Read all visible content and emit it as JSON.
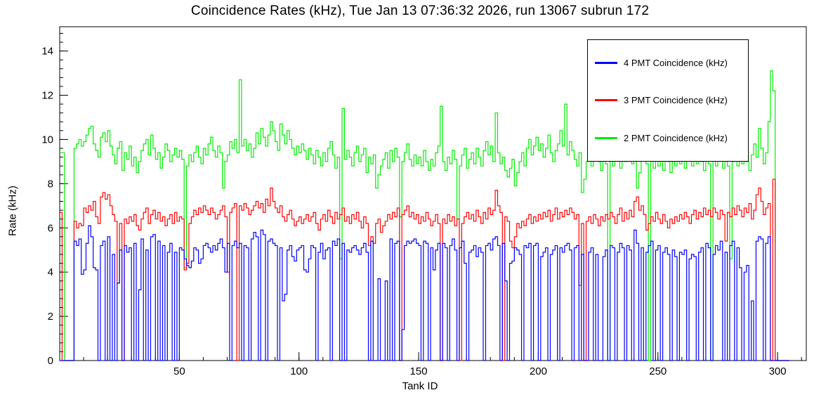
{
  "title": "Coincidence Rates (kHz), Tue Jan 13 07:36:32 2026, run 13067 subrun 172",
  "chart_data": {
    "type": "line",
    "style": "step-histogram",
    "title": "Coincidence Rates (kHz), Tue Jan 13 07:36:32 2026, run 13067 subrun 172",
    "xlabel": "Tank ID",
    "ylabel": "Rate (kHz)",
    "xlim": [
      0,
      312
    ],
    "ylim": [
      0,
      15.1
    ],
    "x_major_ticks": [
      50,
      100,
      150,
      200,
      250,
      300
    ],
    "x_minor_step": 10,
    "y_major_ticks": [
      0,
      2,
      4,
      6,
      8,
      10,
      12,
      14
    ],
    "y_minor_step": 0.4,
    "grid": false,
    "legend_position": "top-right",
    "x_bin_start": 1,
    "legend": [
      {
        "label": "4 PMT Coincidence (kHz)",
        "color": "#0000ff"
      },
      {
        "label": "3 PMT Coincidence (kHz)",
        "color": "#ff0000"
      },
      {
        "label": "2 PMT Coincidence (kHz)",
        "color": "#00ee00"
      }
    ],
    "series": [
      {
        "name": "4 PMT Coincidence (kHz)",
        "slug": "4pmt",
        "color": "#0000ff",
        "values": [
          0,
          0,
          0,
          0,
          0,
          0,
          5.4,
          5.2,
          5.5,
          3.9,
          4.1,
          5.3,
          6.1,
          5.6,
          4.2,
          4.1,
          0,
          5.2,
          5.4,
          0,
          5.6,
          0,
          4.8,
          0,
          3.5,
          5.0,
          0,
          5.2,
          4.9,
          5.1,
          0,
          5.3,
          0,
          3.2,
          5.5,
          0,
          5.0,
          0,
          5.6,
          5.7,
          0,
          5.4,
          0,
          5.2,
          0,
          4.9,
          5.3,
          0,
          4.9,
          0,
          5.1,
          5.0,
          4.6,
          4.3,
          4.2,
          4.5,
          5.1,
          5.0,
          4.4,
          4.6,
          5.2,
          5.3,
          5.1,
          4.9,
          5.2,
          5.0,
          5.3,
          5.5,
          5.1,
          4.0,
          5.3,
          0,
          5.2,
          5.4,
          5.1,
          5.3,
          0,
          5.2,
          5.1,
          0,
          5.5,
          5.8,
          5.6,
          0,
          5.9,
          5.7,
          0,
          5.4,
          5.5,
          5.3,
          5.2,
          0,
          5.1,
          2.7,
          3.0,
          5.0,
          5.2,
          4.7,
          4.5,
          5.0,
          5.1,
          5.2,
          4.1,
          4.0,
          4.6,
          5.2,
          5.1,
          0,
          4.9,
          5.3,
          4.6,
          5.0,
          5.1,
          0,
          5.4,
          5.2,
          5.5,
          0,
          5.3,
          0,
          5.0,
          4.9,
          5.1,
          5.2,
          5.0,
          4.8,
          5.1,
          5.3,
          4.9,
          0,
          5.4,
          0,
          0,
          3.7,
          0,
          0,
          3.6,
          0,
          5.5,
          0,
          5.3,
          5.4,
          0,
          1.4,
          5.2,
          5.4,
          5.3,
          5.4,
          5.5,
          5.3,
          5.2,
          0,
          5.4,
          5.3,
          0,
          5.1,
          4.1,
          5.0,
          5.3,
          0,
          5.3,
          5.1,
          0,
          5.2,
          5.5,
          5.0,
          0,
          5.1,
          5.4,
          4.4,
          0,
          4.9,
          5.0,
          5.2,
          4.7,
          5.1,
          4.9,
          0,
          5.2,
          5.3,
          5.0,
          5.5,
          5.6,
          5.2,
          0,
          5.3,
          3.6,
          0,
          4.4,
          4.5,
          5.1,
          5.0,
          4.8,
          0,
          5.2,
          5.1,
          5.3,
          0,
          5.2,
          5.3,
          0,
          4.7,
          4.9,
          5.1,
          0,
          4.8,
          5.0,
          5.2,
          0,
          5.1,
          4.9,
          5.2,
          5.3,
          5.0,
          0,
          5.1,
          5.2,
          0,
          4.8,
          0,
          0,
          4.9,
          5.1,
          0,
          4.8,
          0,
          0,
          4.7,
          5.0,
          0,
          5.2,
          5.1,
          0,
          4.9,
          5.3,
          5.1,
          0,
          5.2,
          5.0,
          0,
          5.9,
          5.3,
          0,
          5.1,
          0,
          4.9,
          5.2,
          5.4,
          0,
          5.0,
          5.2,
          0,
          4.9,
          5.1,
          4.8,
          0,
          5.0,
          4.7,
          0,
          4.9,
          4.8,
          5.0,
          0,
          4.6,
          4.8,
          4.7,
          0,
          4.9,
          5.1,
          0,
          5.3,
          5.1,
          0,
          4.8,
          5.2,
          5.0,
          5.4,
          0,
          4.9,
          0,
          5.2,
          5.4,
          0,
          5.1,
          4.2,
          0,
          4.0,
          4.3,
          0,
          2.7,
          0,
          5.4,
          5.6,
          5.5,
          0,
          5.3,
          5.6,
          0,
          0,
          0,
          0,
          0,
          0,
          0,
          0
        ]
      },
      {
        "name": "3 PMT Coincidence (kHz)",
        "slug": "3pmt",
        "color": "#ff0000",
        "values": [
          6.7,
          0,
          0,
          0,
          0,
          0,
          6.3,
          6.0,
          6.2,
          6.1,
          6.9,
          6.7,
          7.0,
          6.8,
          7.2,
          6.5,
          6.2,
          7.4,
          7.6,
          7.3,
          7.5,
          7.0,
          6.6,
          6.3,
          3.5,
          6.2,
          0,
          6.4,
          6.2,
          6.5,
          6.3,
          6.6,
          6.1,
          5.9,
          6.4,
          6.7,
          6.9,
          6.2,
          6.6,
          6.8,
          6.4,
          6.7,
          6.3,
          6.5,
          6.1,
          6.4,
          6.6,
          6.2,
          6.7,
          6.3,
          6.5,
          6.4,
          4.1,
          4.4,
          6.2,
          6.5,
          6.8,
          6.6,
          6.9,
          6.7,
          7.0,
          6.8,
          6.6,
          6.9,
          6.7,
          6.4,
          6.6,
          6.8,
          7.0,
          6.5,
          4.0,
          6.7,
          6.9,
          7.1,
          0,
          7.0,
          6.8,
          7.1,
          6.9,
          6.6,
          6.8,
          7.0,
          7.2,
          6.9,
          7.1,
          6.7,
          7.3,
          7.0,
          7.8,
          7.2,
          6.9,
          6.7,
          7.0,
          6.5,
          6.3,
          6.6,
          6.8,
          6.4,
          6.1,
          6.3,
          6.5,
          6.2,
          6.4,
          6.6,
          6.3,
          6.5,
          6.7,
          6.2,
          5.9,
          6.4,
          6.6,
          6.3,
          6.8,
          6.5,
          6.2,
          6.7,
          6.4,
          6.6,
          6.9,
          6.3,
          6.5,
          6.2,
          6.6,
          6.4,
          6.7,
          6.3,
          6.0,
          6.5,
          6.2,
          5.2,
          5.6,
          5.3,
          6.2,
          6.4,
          5.8,
          6.1,
          6.3,
          6.6,
          6.4,
          6.7,
          6.5,
          6.9,
          0,
          6.6,
          6.8,
          7.0,
          6.5,
          6.7,
          6.4,
          6.6,
          6.2,
          6.5,
          6.3,
          6.7,
          6.4,
          6.1,
          6.3,
          6.6,
          6.2,
          0,
          6.4,
          6.2,
          6.6,
          6.3,
          6.5,
          6.1,
          6.4,
          0,
          6.2,
          6.5,
          6.7,
          6.4,
          6.6,
          6.3,
          6.8,
          6.5,
          6.2,
          6.7,
          6.4,
          6.9,
          6.6,
          6.8,
          7.7,
          7.0,
          6.7,
          0,
          6.5,
          6.3,
          5.4,
          5.1,
          5.6,
          6.2,
          6.0,
          6.3,
          6.1,
          6.4,
          6.6,
          6.2,
          6.5,
          6.3,
          6.6,
          6.4,
          6.7,
          6.5,
          6.8,
          6.3,
          6.6,
          6.9,
          6.4,
          6.7,
          6.5,
          6.8,
          6.6,
          6.9,
          6.7,
          6.4,
          6.6,
          3.4,
          6.2,
          0,
          6.3,
          6.5,
          6.2,
          6.6,
          6.4,
          6.1,
          6.5,
          6.3,
          6.6,
          6.4,
          6.7,
          6.5,
          6.2,
          6.6,
          6.9,
          6.3,
          6.7,
          6.4,
          6.8,
          6.5,
          7.2,
          7.4,
          6.8,
          7.0,
          6.6,
          5.9,
          6.2,
          6.5,
          6.3,
          6.7,
          6.4,
          6.2,
          6.6,
          6.3,
          6.0,
          6.4,
          6.2,
          6.5,
          6.3,
          6.6,
          6.4,
          6.7,
          6.5,
          6.2,
          6.6,
          6.8,
          6.4,
          6.7,
          6.5,
          6.9,
          6.6,
          6.8,
          6.5,
          6.9,
          6.7,
          6.4,
          6.8,
          6.6,
          5.4,
          6.7,
          6.5,
          6.9,
          6.6,
          7.0,
          6.8,
          6.5,
          6.9,
          6.7,
          7.1,
          6.4,
          6.8,
          7.5,
          7.8,
          7.2,
          6.6,
          6.9,
          7.1,
          0,
          8.2,
          0,
          0,
          0,
          0,
          0,
          0
        ]
      },
      {
        "name": "2 PMT Coincidence (kHz)",
        "slug": "2pmt",
        "color": "#00ee00",
        "values": [
          9.4,
          9.4,
          0,
          0,
          0,
          0,
          9.6,
          9.8,
          10.0,
          9.7,
          9.9,
          10.2,
          10.5,
          10.6,
          9.8,
          9.5,
          9.2,
          10.1,
          10.3,
          9.9,
          10.4,
          9.7,
          9.3,
          8.9,
          9.6,
          9.9,
          8.6,
          9.4,
          9.1,
          9.7,
          8.8,
          9.2,
          8.5,
          9.0,
          9.5,
          9.8,
          10.0,
          9.3,
          10.2,
          9.6,
          9.1,
          9.4,
          8.7,
          9.2,
          9.8,
          9.5,
          9.0,
          9.3,
          9.6,
          9.2,
          9.5,
          9.1,
          4.2,
          8.8,
          9.3,
          9.0,
          9.4,
          9.7,
          9.2,
          8.9,
          9.6,
          9.3,
          9.8,
          10.1,
          9.5,
          9.2,
          9.7,
          9.4,
          7.8,
          9.0,
          9.3,
          9.9,
          9.6,
          10.0,
          9.4,
          12.7,
          9.7,
          10.0,
          9.5,
          9.8,
          9.2,
          9.6,
          10.3,
          9.8,
          10.5,
          10.1,
          9.7,
          10.2,
          10.8,
          10.4,
          9.9,
          9.5,
          10.7,
          10.2,
          9.8,
          10.4,
          10.0,
          9.6,
          9.3,
          9.7,
          9.4,
          9.8,
          9.5,
          9.1,
          9.6,
          9.3,
          8.9,
          9.5,
          9.2,
          8.8,
          9.4,
          9.0,
          9.6,
          9.9,
          9.3,
          8.7,
          9.2,
          4.6,
          11.4,
          9.1,
          9.5,
          9.2,
          8.8,
          9.4,
          9.7,
          9.0,
          9.3,
          9.6,
          8.5,
          9.2,
          8.9,
          9.3,
          7.8,
          8.4,
          8.8,
          9.1,
          9.4,
          8.7,
          9.5,
          9.0,
          9.6,
          9.2,
          6.5,
          9.0,
          9.4,
          9.8,
          9.1,
          8.8,
          9.3,
          8.9,
          9.2,
          8.8,
          9.5,
          9.0,
          8.6,
          9.1,
          8.8,
          9.4,
          9.7,
          11.5,
          9.0,
          8.6,
          9.2,
          8.9,
          9.5,
          9.1,
          6.4,
          8.8,
          9.3,
          9.6,
          8.7,
          9.1,
          9.4,
          8.9,
          9.6,
          9.2,
          8.8,
          9.5,
          9.9,
          9.3,
          9.7,
          9.0,
          11.2,
          9.4,
          8.9,
          9.2,
          8.6,
          8.3,
          8.7,
          9.1,
          7.9,
          8.5,
          9.0,
          9.4,
          8.8,
          9.6,
          10.0,
          9.3,
          9.7,
          10.1,
          9.5,
          9.8,
          9.2,
          9.6,
          10.2,
          9.4,
          9.0,
          9.5,
          9.8,
          10.4,
          9.7,
          11.6,
          9.3,
          9.9,
          9.5,
          9.1,
          8.8,
          9.4,
          7.6,
          8.2,
          9.0,
          9.4,
          8.8,
          9.2,
          9.6,
          9.0,
          8.6,
          9.3,
          8.9,
          0,
          9.2,
          8.8,
          9.5,
          9.1,
          8.7,
          9.4,
          9.0,
          9.6,
          9.2,
          8.9,
          9.7,
          7.8,
          8.5,
          9.3,
          10.6,
          8.9,
          0,
          9.2,
          8.7,
          9.5,
          8.8,
          9.2,
          8.6,
          9.4,
          9.0,
          8.5,
          9.1,
          8.8,
          9.5,
          8.9,
          9.3,
          8.7,
          9.1,
          9.6,
          8.8,
          9.2,
          8.9,
          9.4,
          9.0,
          8.6,
          9.5,
          8.9,
          0,
          9.3,
          8.8,
          9.6,
          9.1,
          8.7,
          9.2,
          8.8,
          4.6,
          9.0,
          9.4,
          8.8,
          9.2,
          8.9,
          9.5,
          9.0,
          8.6,
          9.3,
          9.8,
          9.2,
          10.5,
          9.6,
          8.9,
          9.4,
          10.8,
          13.1,
          12.2,
          0,
          0,
          0,
          0,
          0,
          0
        ]
      }
    ]
  }
}
